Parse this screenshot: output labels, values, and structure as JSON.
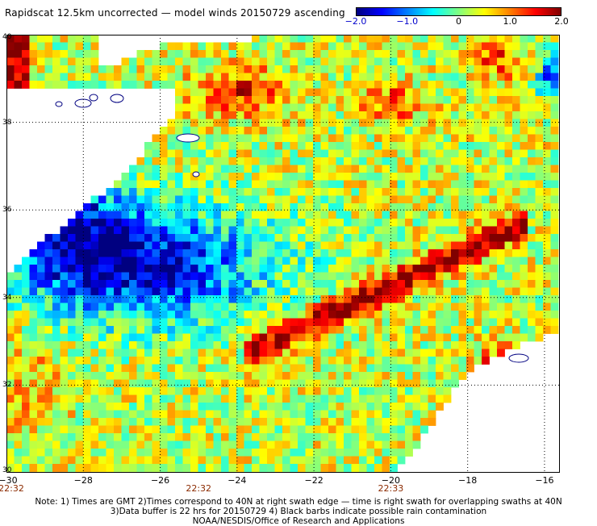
{
  "title": "Rapidscat 12.5km uncorrected — model winds 20150729 ascending",
  "colorbar": {
    "ticks": [
      "−2.0",
      "−1.0",
      "0",
      "1.0",
      "2.0"
    ],
    "min": -2.0,
    "max": 2.0,
    "colors": [
      "#000080",
      "#0000ff",
      "#0080ff",
      "#00ffff",
      "#80ff80",
      "#ffff00",
      "#ff8000",
      "#ff0000",
      "#800000"
    ]
  },
  "map": {
    "lon_range": [
      -30,
      -15.6
    ],
    "lat_range": [
      30,
      40
    ],
    "lat_labels": [
      "40",
      "38",
      "36",
      "34",
      "32",
      "30"
    ],
    "lon_labels": [
      "−30",
      "−28",
      "−26",
      "−24",
      "−22",
      "−20",
      "−18",
      "−16"
    ],
    "time_labels": [
      "22:32",
      "22:32",
      "22:33"
    ],
    "gridlines": "dotted",
    "features": [
      {
        "name": "band-dark-red",
        "value": 1.8
      },
      {
        "name": "region-blue",
        "value": -1.6
      }
    ]
  },
  "notes": [
    "Note: 1) Times are GMT 2)Times correspond to 40N at right swath edge — time is right swath for overlapping swaths at 40N",
    "3)Data buffer is 22 hrs for 20150729 4) Black barbs indicate possible rain contamination",
    "NOAA/NESDIS/Office of Research and Applications"
  ]
}
